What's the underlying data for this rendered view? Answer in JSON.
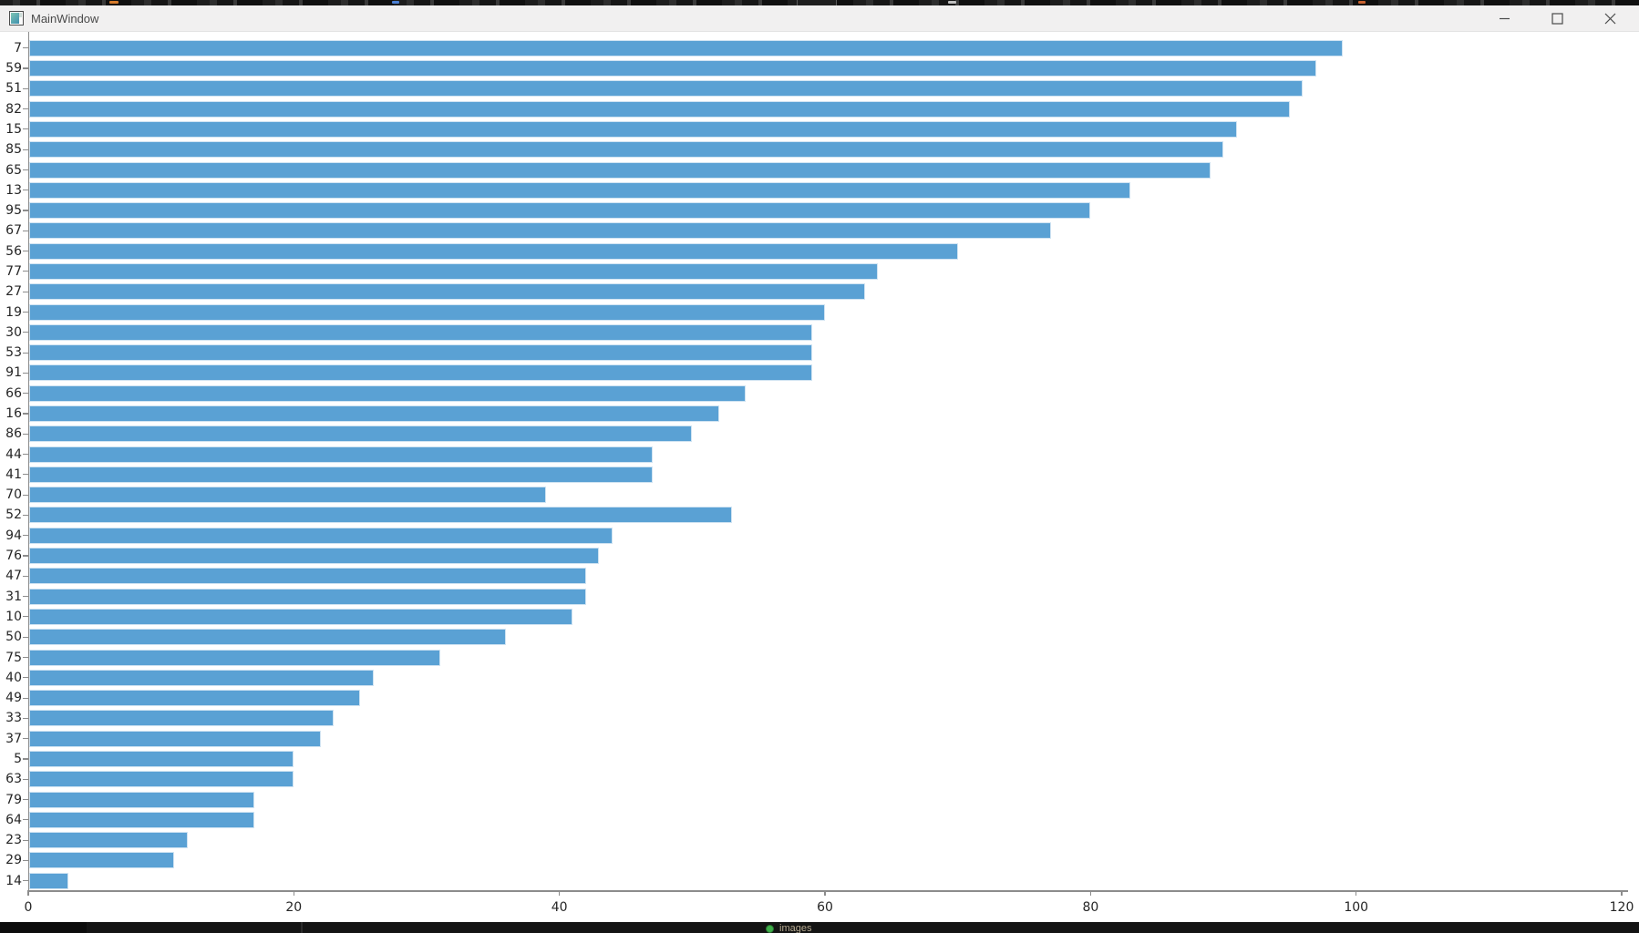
{
  "window": {
    "title": "MainWindow",
    "controls": {
      "minimize_label": "minimize",
      "maximize_label": "maximize",
      "close_label": "close"
    }
  },
  "chart_data": {
    "type": "bar",
    "orientation": "horizontal",
    "title": "",
    "xlabel": "",
    "ylabel": "",
    "categories": [
      "7",
      "59",
      "51",
      "82",
      "15",
      "85",
      "65",
      "13",
      "95",
      "67",
      "56",
      "77",
      "27",
      "19",
      "30",
      "53",
      "91",
      "66",
      "16",
      "86",
      "44",
      "41",
      "70",
      "52",
      "94",
      "76",
      "47",
      "31",
      "10",
      "50",
      "75",
      "40",
      "49",
      "33",
      "37",
      "5",
      "63",
      "79",
      "64",
      "23",
      "29",
      "14"
    ],
    "values": [
      99,
      97,
      96,
      95,
      91,
      90,
      89,
      83,
      80,
      77,
      70,
      64,
      63,
      60,
      59,
      59,
      59,
      54,
      52,
      50,
      47,
      47,
      39,
      53,
      44,
      43,
      42,
      42,
      41,
      36,
      31,
      26,
      25,
      23,
      22,
      20,
      20,
      17,
      17,
      12,
      11,
      3
    ],
    "x_ticks": [
      0,
      20,
      40,
      60,
      80,
      100,
      120
    ],
    "xlim": [
      0,
      120
    ],
    "grid": false,
    "legend": null,
    "bar_color": "#5aa1d4",
    "bar_edge_color": "#cfe3f2",
    "axis_color": "#8c8c8c",
    "tick_label_color": "#262626"
  },
  "background": {
    "taskbar_item_label": "images"
  }
}
